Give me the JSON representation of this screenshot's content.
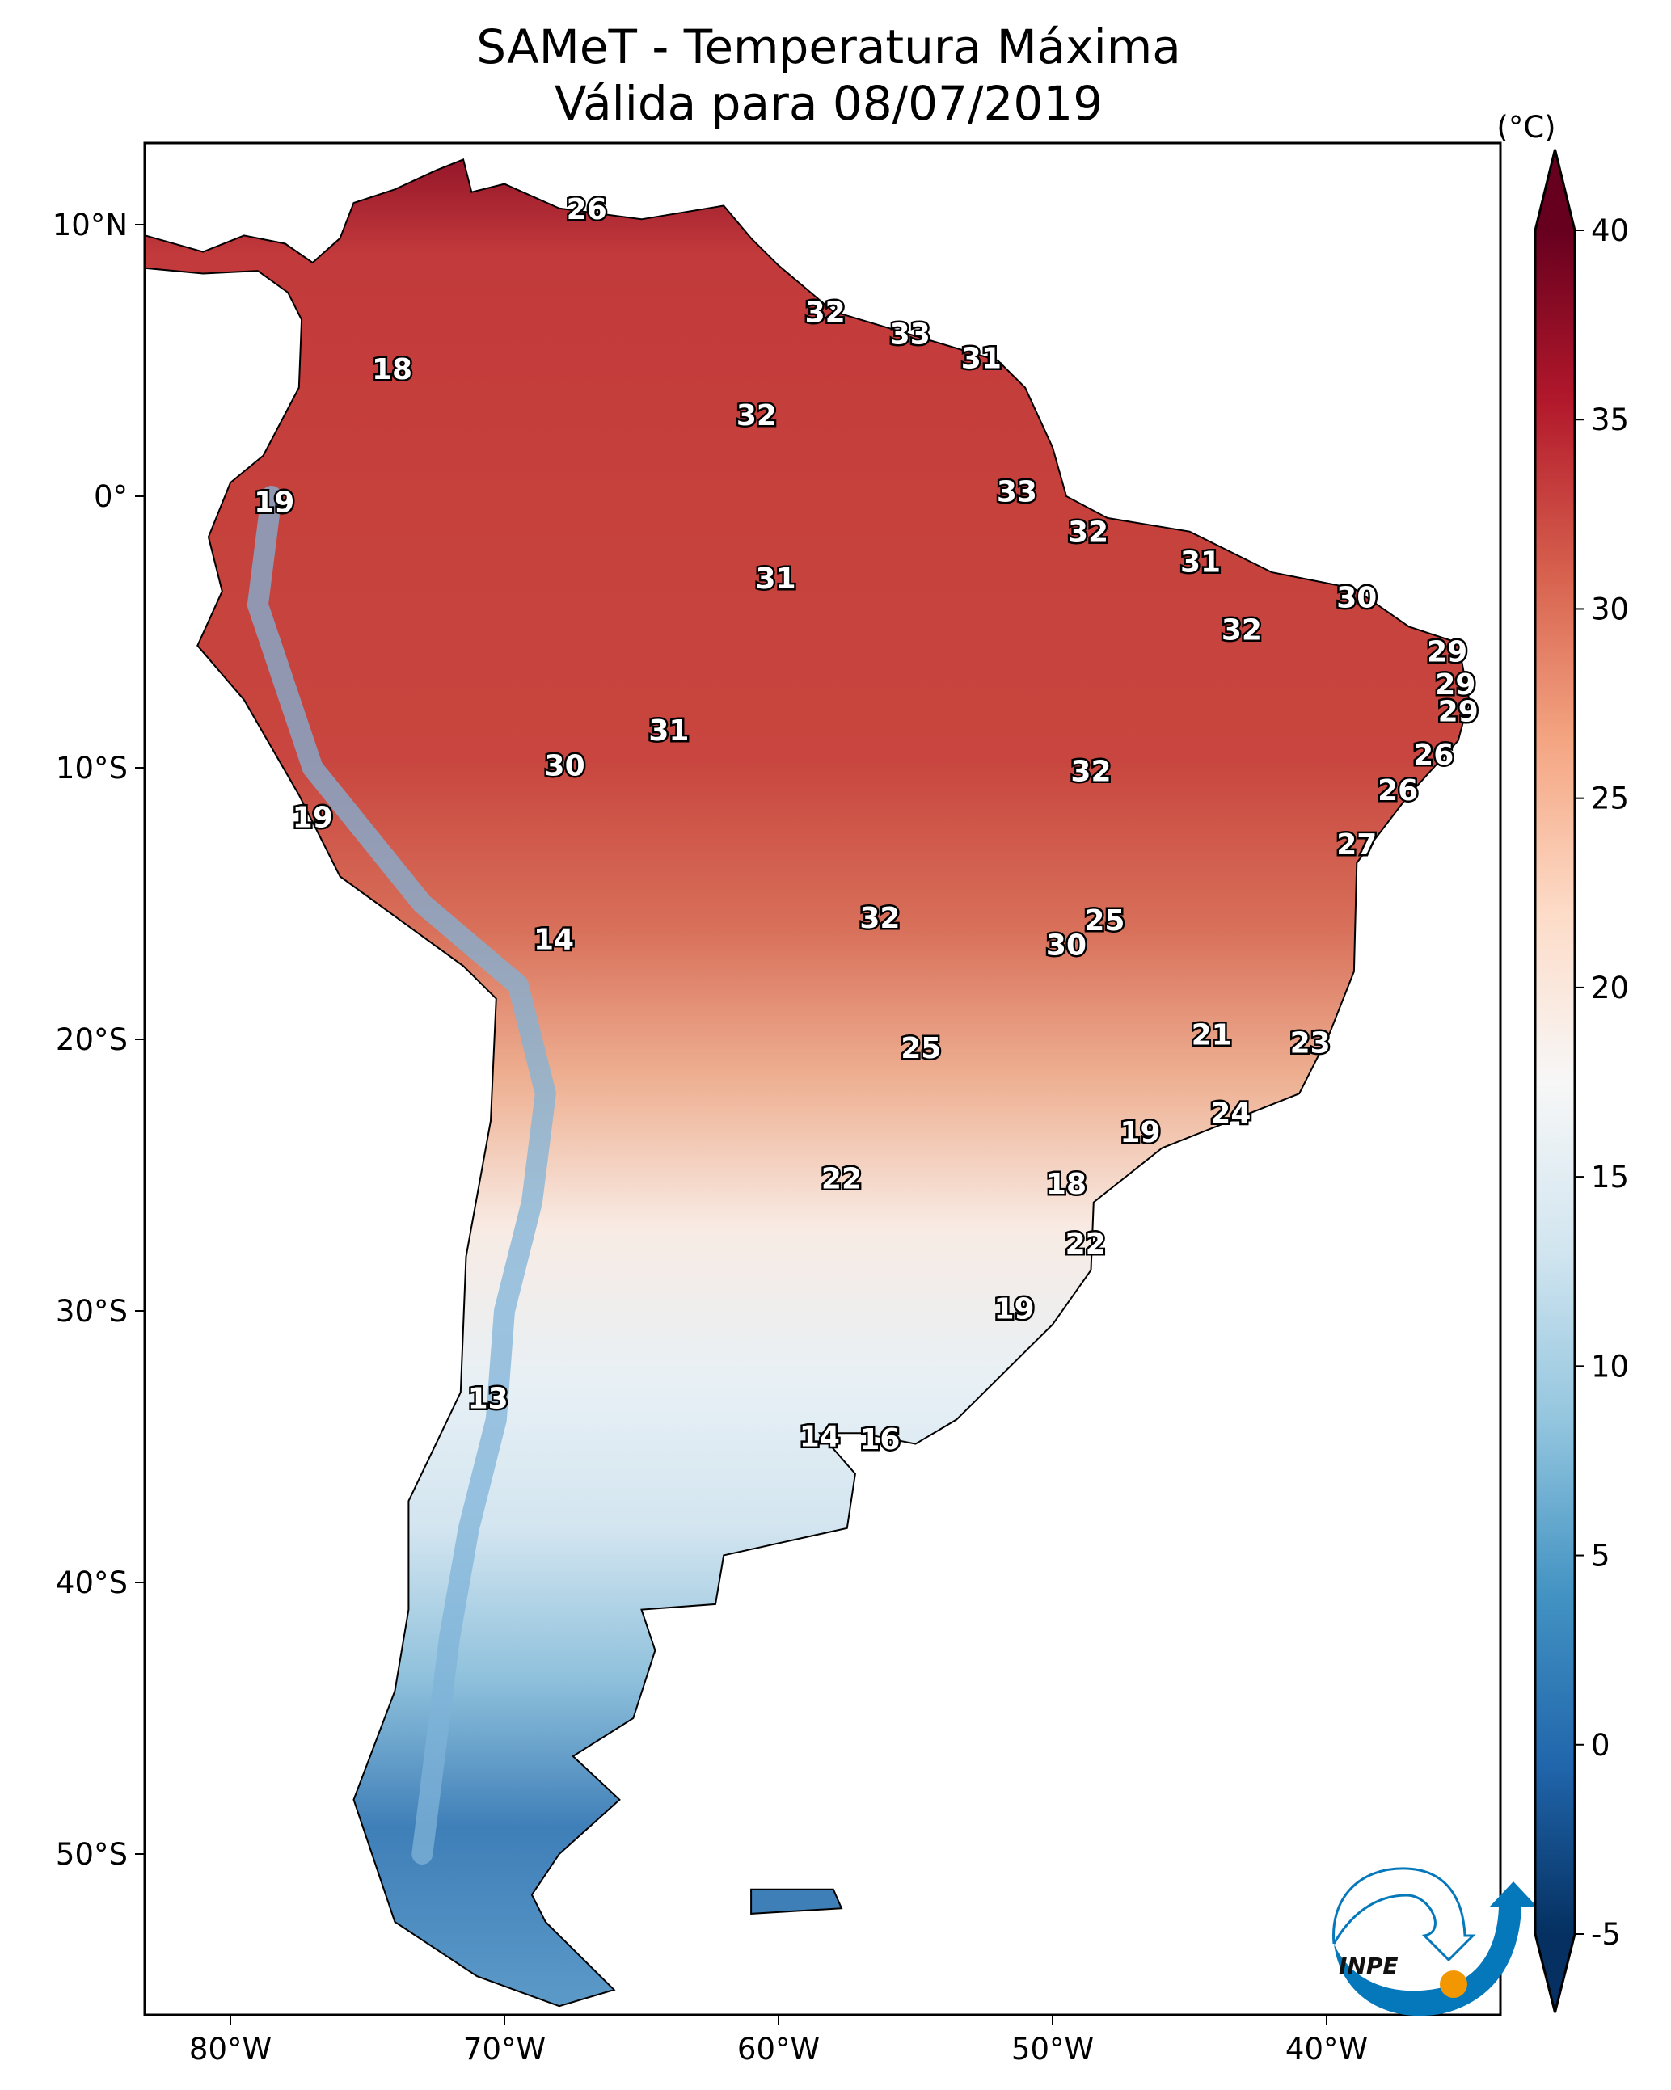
{
  "title": {
    "line1": "SAMeT - Temperatura Máxima",
    "line2": "Válida para 08/07/2019"
  },
  "colorbar": {
    "unit_label": "(°C)",
    "min": -5,
    "max": 40,
    "extend": "both",
    "ticks": [
      "40",
      "35",
      "30",
      "25",
      "20",
      "15",
      "10",
      "5",
      "0",
      "-5"
    ],
    "tick_values": [
      40,
      35,
      30,
      25,
      20,
      15,
      10,
      5,
      0,
      -5
    ],
    "colormap": "RdBu_r",
    "colors": [
      "#053061",
      "#2166ac",
      "#4393c3",
      "#92c5de",
      "#d1e5f0",
      "#f7f7f7",
      "#fddbc7",
      "#f4a582",
      "#d6604d",
      "#b2182b",
      "#67001f"
    ]
  },
  "axes": {
    "lon_ticks": [
      {
        "v": -80,
        "label": "80°W"
      },
      {
        "v": -70,
        "label": "70°W"
      },
      {
        "v": -60,
        "label": "60°W"
      },
      {
        "v": -50,
        "label": "50°W"
      },
      {
        "v": -40,
        "label": "40°W"
      }
    ],
    "lat_ticks": [
      {
        "v": 10,
        "label": "10°N"
      },
      {
        "v": 0,
        "label": "0°"
      },
      {
        "v": -10,
        "label": "10°S"
      },
      {
        "v": -20,
        "label": "20°S"
      },
      {
        "v": -30,
        "label": "30°S"
      },
      {
        "v": -40,
        "label": "40°S"
      },
      {
        "v": -50,
        "label": "50°S"
      }
    ],
    "lon_range": [
      -83.1,
      -33.6
    ],
    "lat_range": [
      -56.5,
      12.7
    ]
  },
  "logo": {
    "text": "INPE"
  },
  "chart_data": {
    "type": "map",
    "variable": "maximum temperature",
    "units": "°C",
    "station_labels": [
      {
        "lon": -67.0,
        "lat": 10.6,
        "value": "26"
      },
      {
        "lon": -58.3,
        "lat": 6.8,
        "value": "32"
      },
      {
        "lon": -55.2,
        "lat": 6.0,
        "value": "33"
      },
      {
        "lon": -52.6,
        "lat": 5.1,
        "value": "31"
      },
      {
        "lon": -74.1,
        "lat": 4.7,
        "value": "18"
      },
      {
        "lon": -60.8,
        "lat": 3.0,
        "value": "32"
      },
      {
        "lon": -78.4,
        "lat": -0.2,
        "value": "19"
      },
      {
        "lon": -51.3,
        "lat": 0.2,
        "value": "33"
      },
      {
        "lon": -48.7,
        "lat": -1.3,
        "value": "32"
      },
      {
        "lon": -44.6,
        "lat": -2.4,
        "value": "31"
      },
      {
        "lon": -60.1,
        "lat": -3.0,
        "value": "31"
      },
      {
        "lon": -38.9,
        "lat": -3.7,
        "value": "30"
      },
      {
        "lon": -43.1,
        "lat": -4.9,
        "value": "32"
      },
      {
        "lon": -35.6,
        "lat": -5.7,
        "value": "29"
      },
      {
        "lon": -35.3,
        "lat": -6.9,
        "value": "29"
      },
      {
        "lon": -35.2,
        "lat": -7.9,
        "value": "29"
      },
      {
        "lon": -64.0,
        "lat": -8.6,
        "value": "31"
      },
      {
        "lon": -36.1,
        "lat": -9.5,
        "value": "26"
      },
      {
        "lon": -67.8,
        "lat": -9.9,
        "value": "30"
      },
      {
        "lon": -48.6,
        "lat": -10.1,
        "value": "32"
      },
      {
        "lon": -37.4,
        "lat": -10.8,
        "value": "26"
      },
      {
        "lon": -77.0,
        "lat": -11.8,
        "value": "19"
      },
      {
        "lon": -38.9,
        "lat": -12.8,
        "value": "27"
      },
      {
        "lon": -68.2,
        "lat": -16.3,
        "value": "14"
      },
      {
        "lon": -56.3,
        "lat": -15.5,
        "value": "32"
      },
      {
        "lon": -48.1,
        "lat": -15.6,
        "value": "25"
      },
      {
        "lon": -49.5,
        "lat": -16.5,
        "value": "30"
      },
      {
        "lon": -44.2,
        "lat": -19.8,
        "value": "21"
      },
      {
        "lon": -40.6,
        "lat": -20.1,
        "value": "23"
      },
      {
        "lon": -54.8,
        "lat": -20.3,
        "value": "25"
      },
      {
        "lon": -43.5,
        "lat": -22.7,
        "value": "24"
      },
      {
        "lon": -46.8,
        "lat": -23.4,
        "value": "19"
      },
      {
        "lon": -57.7,
        "lat": -25.1,
        "value": "22"
      },
      {
        "lon": -49.5,
        "lat": -25.3,
        "value": "18"
      },
      {
        "lon": -48.8,
        "lat": -27.5,
        "value": "22"
      },
      {
        "lon": -51.4,
        "lat": -29.9,
        "value": "19"
      },
      {
        "lon": -70.6,
        "lat": -33.2,
        "value": "13"
      },
      {
        "lon": -58.5,
        "lat": -34.6,
        "value": "14"
      },
      {
        "lon": -56.3,
        "lat": -34.7,
        "value": "16"
      }
    ]
  }
}
